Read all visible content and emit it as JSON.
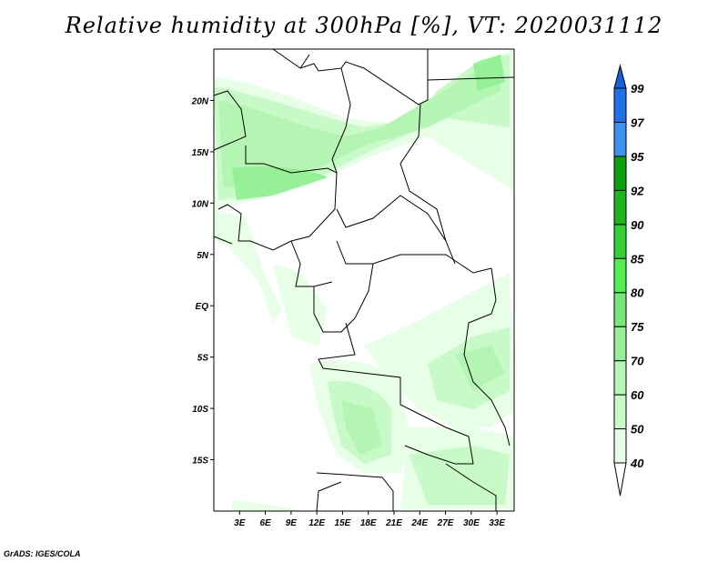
{
  "title": "Relative humidity at 300hPa [%], VT: 2020031112",
  "footer": "GrADS: IGES/COLA",
  "map": {
    "lon_range": [
      0,
      35
    ],
    "lat_range": [
      -20,
      25
    ],
    "lon_labels": [
      {
        "v": 3,
        "t": "3E"
      },
      {
        "v": 6,
        "t": "6E"
      },
      {
        "v": 9,
        "t": "9E"
      },
      {
        "v": 12,
        "t": "12E"
      },
      {
        "v": 15,
        "t": "15E"
      },
      {
        "v": 18,
        "t": "18E"
      },
      {
        "v": 21,
        "t": "21E"
      },
      {
        "v": 24,
        "t": "24E"
      },
      {
        "v": 27,
        "t": "27E"
      },
      {
        "v": 30,
        "t": "30E"
      },
      {
        "v": 33,
        "t": "33E"
      }
    ],
    "lat_labels": [
      {
        "v": 20,
        "t": "20N"
      },
      {
        "v": 15,
        "t": "15N"
      },
      {
        "v": 10,
        "t": "10N"
      },
      {
        "v": 5,
        "t": "5N"
      },
      {
        "v": 0,
        "t": "EQ"
      },
      {
        "v": -5,
        "t": "5S"
      },
      {
        "v": -10,
        "t": "10S"
      },
      {
        "v": -15,
        "t": "15S"
      }
    ]
  },
  "colorbar": {
    "levels": [
      "40",
      "50",
      "60",
      "70",
      "75",
      "80",
      "85",
      "90",
      "92",
      "95",
      "97",
      "99"
    ],
    "colors": [
      "#e6ffe6",
      "#c8fac8",
      "#b4f5b4",
      "#96f096",
      "#78e678",
      "#50f050",
      "#34d034",
      "#1eb41e",
      "#0fa00f",
      "#3d94f0",
      "#2070e8",
      "#1660d8"
    ]
  }
}
